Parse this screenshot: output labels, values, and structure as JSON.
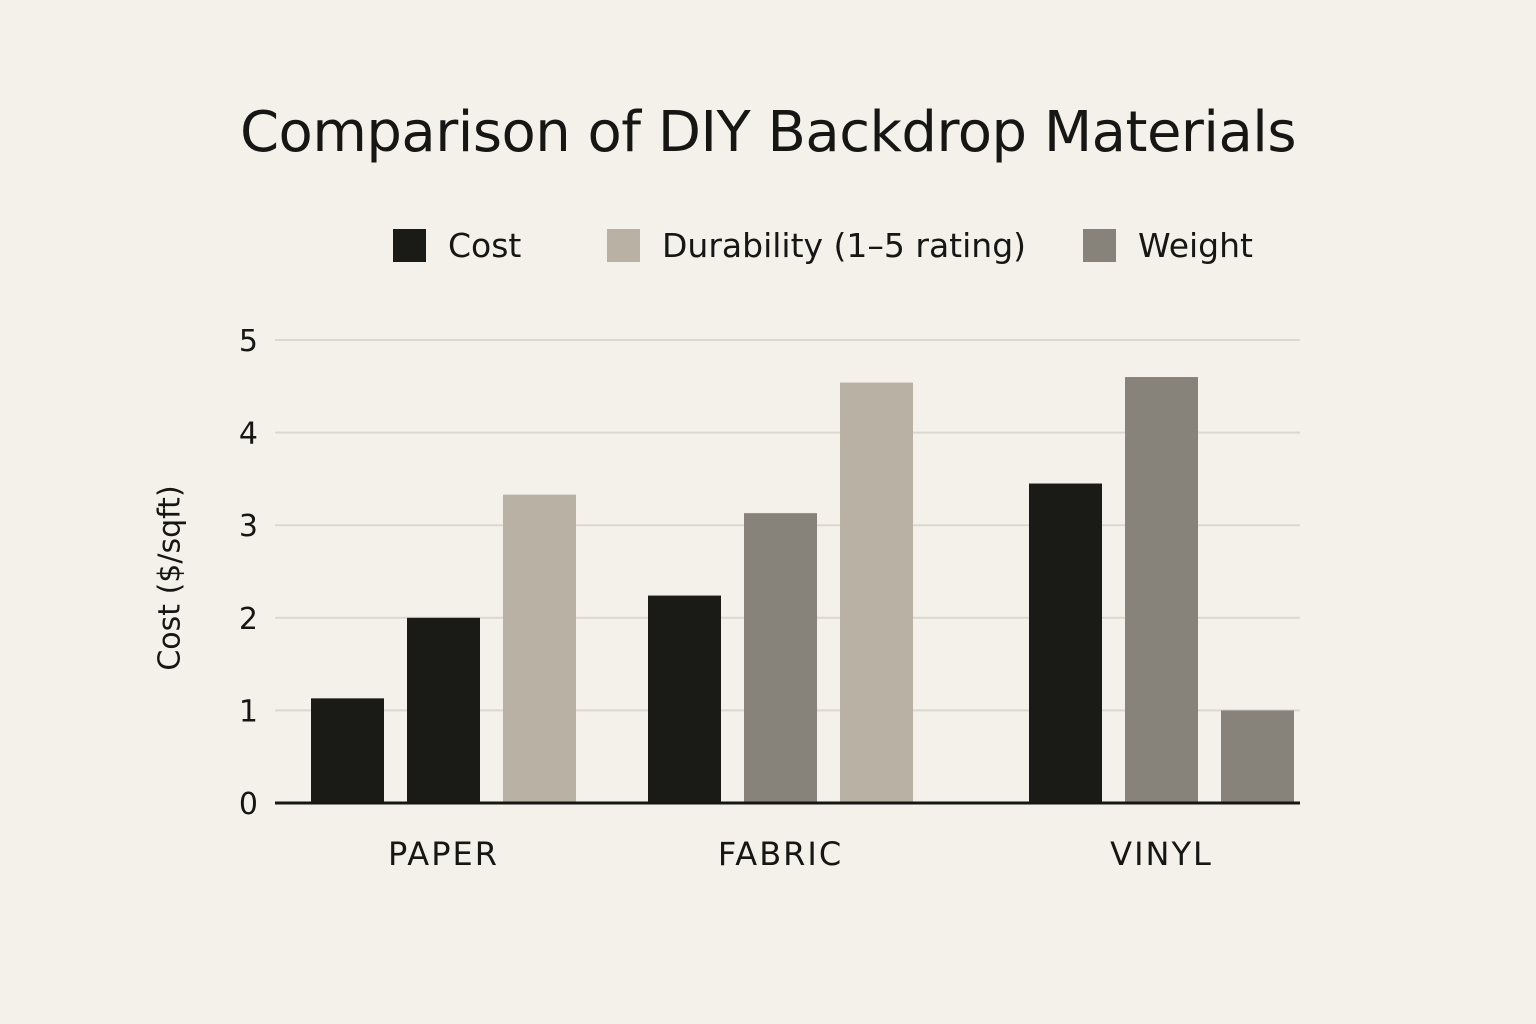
{
  "chart_data": {
    "type": "bar",
    "title": "Comparison of DIY Backdrop Materials",
    "ylabel": "Cost ($/sqft)",
    "xlabel": "",
    "ylim": [
      0,
      5
    ],
    "yticks": [
      "0",
      "1",
      "2",
      "3",
      "4",
      "5"
    ],
    "grid": true,
    "legend_placement": "top",
    "legend": [
      {
        "name": "Cost",
        "color": "#1a1a17"
      },
      {
        "name": "Durability (1–5 rating)",
        "color": "#b8b1a4"
      },
      {
        "name": "Weight",
        "color": "#88837a"
      }
    ],
    "categories": [
      "PAPER",
      "FABRIC",
      "VINYL"
    ],
    "bars": [
      [
        {
          "series": "Cost",
          "value": 1.13
        },
        {
          "series": "Cost",
          "value": 2.0
        },
        {
          "series": "Durability (1–5 rating)",
          "value": 3.33
        }
      ],
      [
        {
          "series": "Cost",
          "value": 2.24
        },
        {
          "series": "Weight",
          "value": 3.13
        },
        {
          "series": "Durability (1–5 rating)",
          "value": 4.54
        }
      ],
      [
        {
          "series": "Cost",
          "value": 3.45
        },
        {
          "series": "Weight",
          "value": 4.6
        },
        {
          "series": "Weight",
          "value": 1.0
        }
      ]
    ]
  }
}
